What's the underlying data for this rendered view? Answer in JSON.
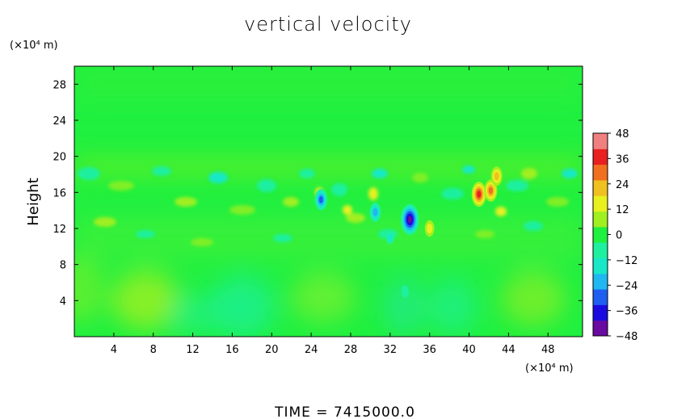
{
  "chart_data": {
    "type": "heatmap",
    "title": "vertical velocity",
    "ylabel": "Height",
    "y_units": "(×10⁴ m)",
    "x_units": "(×10⁴ m)",
    "footer": "TIME  =  7415000.0",
    "x_ticks": [
      "4",
      "8",
      "12",
      "16",
      "20",
      "24",
      "28",
      "32",
      "36",
      "40",
      "44",
      "48"
    ],
    "y_ticks": [
      "4",
      "8",
      "12",
      "16",
      "20",
      "24",
      "28"
    ],
    "xlim": [
      0,
      51.5
    ],
    "ylim": [
      0,
      30
    ],
    "colorbar": {
      "ticks": [
        "48",
        "36",
        "24",
        "12",
        "0",
        "−12",
        "−24",
        "−36",
        "−48"
      ],
      "range": [
        -48,
        48
      ],
      "colors": [
        "#6a0aa0",
        "#1a0ae0",
        "#1e5ef0",
        "#20b8f0",
        "#18e8c8",
        "#1ef0a0",
        "#20f040",
        "#a0ef20",
        "#e8f020",
        "#f0c020",
        "#f07020",
        "#e82020",
        "#f08080"
      ]
    },
    "background_value": 0,
    "features": [
      {
        "x": 34.0,
        "y": 13.0,
        "value": -48
      },
      {
        "x": 25.0,
        "y": 15.2,
        "value": -28
      },
      {
        "x": 30.5,
        "y": 13.8,
        "value": -24
      },
      {
        "x": 41.0,
        "y": 15.8,
        "value": 36
      },
      {
        "x": 42.2,
        "y": 16.2,
        "value": 30
      },
      {
        "x": 42.8,
        "y": 17.8,
        "value": 24
      },
      {
        "x": 36.0,
        "y": 12.0,
        "value": 18
      },
      {
        "x": 32.0,
        "y": 11.0,
        "value": -12
      },
      {
        "x": 33.5,
        "y": 5.0,
        "value": -10
      }
    ]
  }
}
